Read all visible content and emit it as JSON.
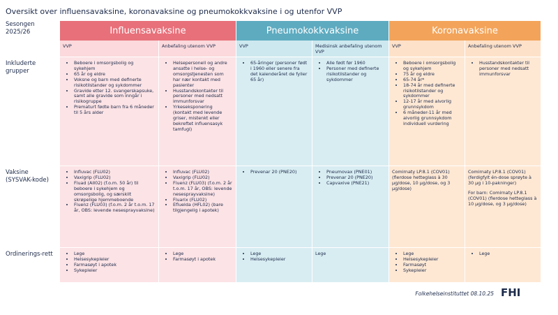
{
  "title": "Oversikt over influensavaksine, koronavaksine og pneumokokkvaksine i og utenfor VVP",
  "season": "Sesongen 2025/26",
  "groups": [
    {
      "name": "Influensavaksine",
      "columns": [
        "VVP",
        "Anbefaling utenom VVP"
      ]
    },
    {
      "name": "Pneumokokkvaksine",
      "columns": [
        "VVP",
        "Medisinsk anbefaling utenom VVP"
      ]
    },
    {
      "name": "Koronavaksine",
      "columns": [
        "VVP",
        "Anbefaling utenom VVP"
      ]
    }
  ],
  "rows": [
    {
      "label": "Inkluderte grupper",
      "cells": [
        {
          "bullets": [
            "Beboere i omsorgsbolig og sykehjem",
            "65 år og eldre",
            "Voksne og barn med definerte risikotilstander og sykdommer",
            "Gravide etter 12. svangerskapsuke, samt alle gravide som inngår i risikogruppe",
            "Prematurt fødte barn fra 6 måneder til 5 års alder"
          ]
        },
        {
          "bullets": [
            "Helsepersonell og andre ansatte i helse- og omsorgstjenesten som har nær kontakt med pasienter",
            "Husstandskontakter til personer med nedsatt immunforsvar",
            "Yrkeseksponering (kontakt med levende griser, mistenkt eller bekreftet influensasyk tamfugl)"
          ]
        },
        {
          "bullets": [
            "65-åringer (personer født i 1960 eller senere fra det kalenderåret de fyller 65 år)"
          ]
        },
        {
          "bullets": [
            "Alle født før 1960",
            "Personer med definerte risikotilstander og sykdommer"
          ]
        },
        {
          "bullets": [
            "Beboere i omsorgsbolig og sykehjem",
            "75 år og eldre",
            "65-74 år*",
            "18-74 år med definerte risikotilstander og sykdommer",
            "12-17 år med alvorlig grunnsykdom",
            "6 måneder-11 år med alvorlig grunnsykdom individuell vurdering"
          ]
        },
        {
          "bullets": [
            "Husstandskontakter til personer med nedsatt immunforsvar"
          ]
        }
      ]
    },
    {
      "label": "Vaksine (SYSVAK-kode)",
      "cells": [
        {
          "bullets": [
            "Influvac (FLU02)",
            "Vaxigrip (FLU02)",
            "Fluad (AII02) (f.o.m. 50 år) til beboere i sykehjem og omsorgsbolig, og særskilt skrøpelige hjemmeboende",
            "Fluenz (FLU03) (f.o.m. 2 år t.o.m. 17 år, OBS: levende nesesprayvaksine)"
          ]
        },
        {
          "bullets": [
            "Influvac (FLU02)",
            "Vaxigrip (FLU02)",
            "Fluenz (FLU03) (f.o.m. 2 år t.o.m. 17 år, OBS: levende nesesprayvaksine)",
            "Fluarix (FLU02)",
            "Efluelda (HFL02) (bare tilgjengelig i apotek)"
          ]
        },
        {
          "bullets": [
            "Prevenar 20 (PNE20)"
          ]
        },
        {
          "bullets": [
            "Pneumovax (PNE01)",
            "Prevenar 20 (PNE20)",
            "Capvaxive (PNE21)"
          ]
        },
        {
          "paragraphs": [
            "Comirnaty LP.8.1 (COV01)(flerdose hetteglass à 30 μg/dose, 10 μg/dose, og 3 μg/dose)"
          ]
        },
        {
          "paragraphs": [
            "Comirnaty LP.8.1 (COV01)(ferdigfylt én-dose sprøyte à 30 μg i 10-pakninger)",
            "For barn: Comirnaty LP.8.1 (COV01) (flerdose hetteglass à 10 μg/dose, og 3 μg/dose)"
          ]
        }
      ]
    },
    {
      "label": "Ordinerings-rett",
      "cells": [
        {
          "bullets": [
            "Lege",
            "Helsesykepleier",
            "Farmasøyt i apotek",
            "Sykepleier"
          ]
        },
        {
          "bullets": [
            "Lege",
            "Farmasøyt i apotek"
          ]
        },
        {
          "bullets": [
            "Lege",
            "Helsesykepleier"
          ]
        },
        {
          "paragraphs": [
            "Lege"
          ]
        },
        {
          "bullets": [
            "Lege",
            "Helsesykepleier",
            "Farmasøyt",
            "Sykepleier"
          ]
        },
        {
          "bullets": [
            "Lege"
          ]
        }
      ]
    }
  ],
  "footer": {
    "source": "Folkehelseinstituttet 08.10.25",
    "logo": "FHI"
  }
}
